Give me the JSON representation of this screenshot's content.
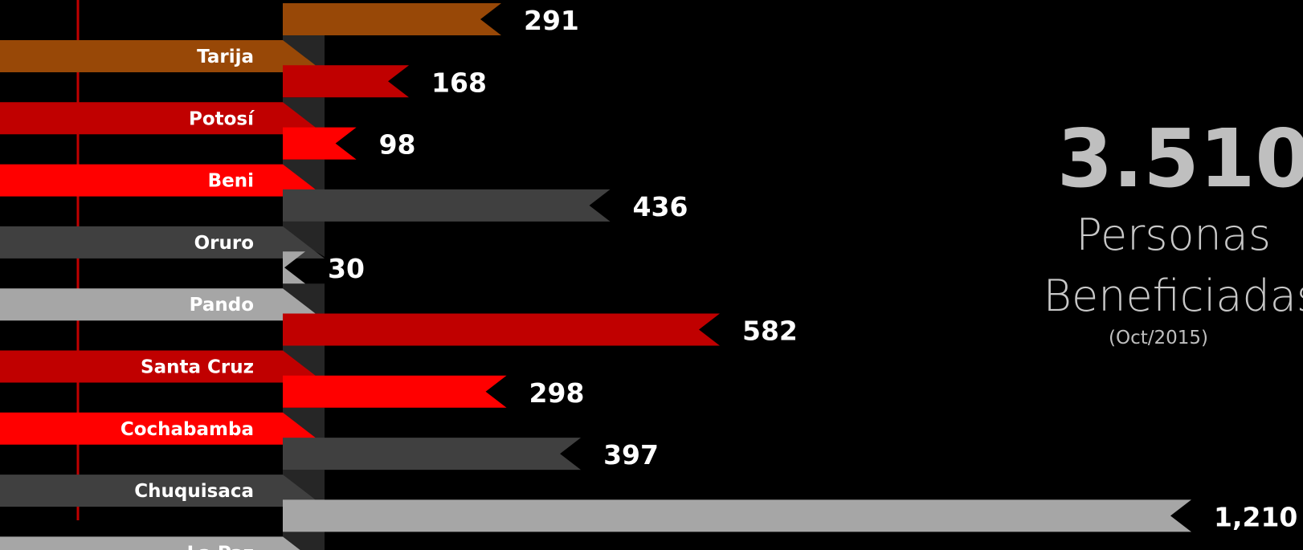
{
  "chart_data": {
    "type": "bar",
    "orientation": "horizontal",
    "categories": [
      "Tarija",
      "Potosí",
      "Beni",
      "Oruro",
      "Pando",
      "Santa Cruz",
      "Cochabamba",
      "Chuquisaca",
      "La Paz"
    ],
    "values": [
      291,
      168,
      98,
      436,
      30,
      582,
      298,
      397,
      1210
    ],
    "value_labels": [
      "291",
      "168",
      "98",
      "436",
      "30",
      "582",
      "298",
      "397",
      "1,210"
    ],
    "colors": [
      "#984807",
      "#c00000",
      "#ff0000",
      "#404040",
      "#a6a6a6",
      "#c00000",
      "#ff0000",
      "#404040",
      "#a6a6a6"
    ],
    "title": "",
    "xlabel": "",
    "ylabel": "",
    "grid": false,
    "legend": "none",
    "reference_line_color": "#c00000"
  },
  "summary": {
    "total": "3.510",
    "line1": "Personas",
    "line2": "Beneficiadas",
    "date": "(Oct/2015)"
  }
}
